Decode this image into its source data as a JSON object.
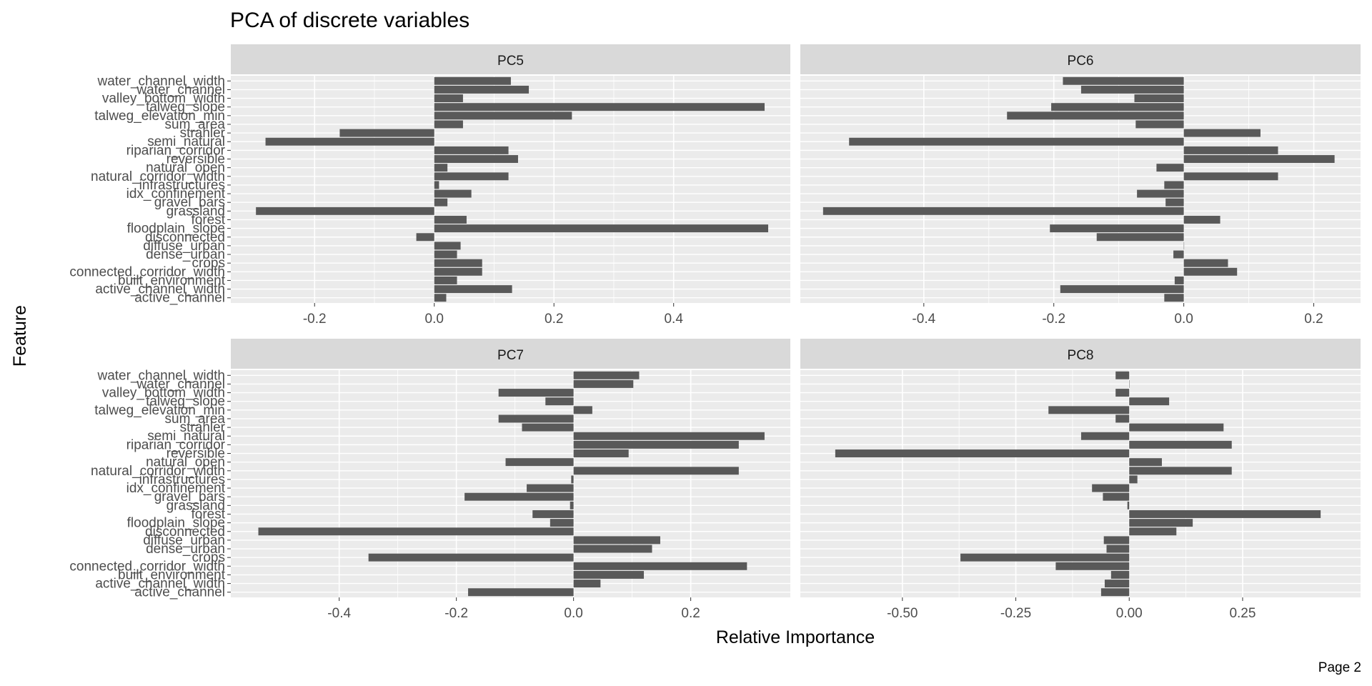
{
  "page": {
    "caption": "Page 2"
  },
  "chart_data": {
    "type": "bar",
    "orientation": "horizontal",
    "title": "PCA of discrete variables",
    "xlabel": "Relative Importance",
    "ylabel": "Feature",
    "grid": true,
    "colors": {
      "bar": "#595959",
      "panel_bg": "#ebebeb",
      "grid": "#ffffff",
      "strip_bg": "#d9d9d9"
    },
    "categories": [
      "water_channel_width",
      "water_channel",
      "valley_bottom_width",
      "talweg_slope",
      "talweg_elevation_min",
      "sum_area",
      "strahler",
      "semi_natural",
      "riparian_corridor",
      "reversible",
      "natural_open",
      "natural_corridor_width",
      "infrastructures",
      "idx_confinement",
      "gravel_bars",
      "grassland",
      "forest",
      "floodplain_slope",
      "disconnected",
      "diffuse_urban",
      "dense_urban",
      "crops",
      "connected_corridor_width",
      "built_environment",
      "active_channel_width",
      "active_channel"
    ],
    "panels": [
      {
        "name": "PC5",
        "xlim": [
          -0.34,
          0.595
        ],
        "xticks": [
          -0.2,
          0.0,
          0.2,
          0.4
        ],
        "xtick_labels": [
          "-0.2",
          "0.0",
          "0.2",
          "0.4"
        ],
        "values": [
          0.128,
          0.158,
          0.048,
          0.552,
          0.23,
          0.048,
          -0.158,
          -0.282,
          0.124,
          0.14,
          0.022,
          0.124,
          0.008,
          0.062,
          0.022,
          -0.298,
          0.054,
          0.558,
          -0.03,
          0.044,
          0.038,
          0.08,
          0.08,
          0.038,
          0.13,
          0.02
        ]
      },
      {
        "name": "PC6",
        "xlim": [
          -0.59,
          0.272
        ],
        "xticks": [
          -0.4,
          -0.2,
          0.0,
          0.2
        ],
        "xtick_labels": [
          "-0.4",
          "-0.2",
          "0.0",
          "0.2"
        ],
        "values": [
          -0.186,
          -0.158,
          -0.076,
          -0.204,
          -0.272,
          -0.074,
          0.118,
          -0.515,
          0.145,
          0.232,
          -0.042,
          0.145,
          -0.03,
          -0.072,
          -0.028,
          -0.555,
          0.056,
          -0.206,
          -0.134,
          0.0,
          -0.016,
          0.068,
          0.082,
          -0.014,
          -0.19,
          -0.03
        ]
      },
      {
        "name": "PC7",
        "xlim": [
          -0.585,
          0.37
        ],
        "xticks": [
          -0.4,
          -0.2,
          0.0,
          0.2
        ],
        "xtick_labels": [
          "-0.4",
          "-0.2",
          "0.0",
          "0.2"
        ],
        "values": [
          0.112,
          0.102,
          -0.128,
          -0.048,
          0.032,
          -0.128,
          -0.088,
          0.326,
          0.282,
          0.094,
          -0.116,
          0.282,
          -0.004,
          -0.08,
          -0.186,
          -0.006,
          -0.07,
          -0.04,
          -0.538,
          0.148,
          0.134,
          -0.35,
          0.296,
          0.12,
          0.046,
          -0.18
        ]
      },
      {
        "name": "PC8",
        "xlim": [
          -0.725,
          0.51
        ],
        "xticks": [
          -0.5,
          -0.25,
          0.0,
          0.25
        ],
        "xtick_labels": [
          "-0.50",
          "-0.25",
          "0.00",
          "0.25"
        ],
        "values": [
          -0.03,
          0.0,
          -0.03,
          0.088,
          -0.178,
          -0.03,
          0.208,
          -0.106,
          0.226,
          -0.648,
          0.072,
          0.226,
          0.018,
          -0.082,
          -0.058,
          -0.004,
          0.422,
          0.14,
          0.104,
          -0.056,
          -0.05,
          -0.372,
          -0.162,
          -0.04,
          -0.054,
          -0.062
        ]
      }
    ]
  }
}
